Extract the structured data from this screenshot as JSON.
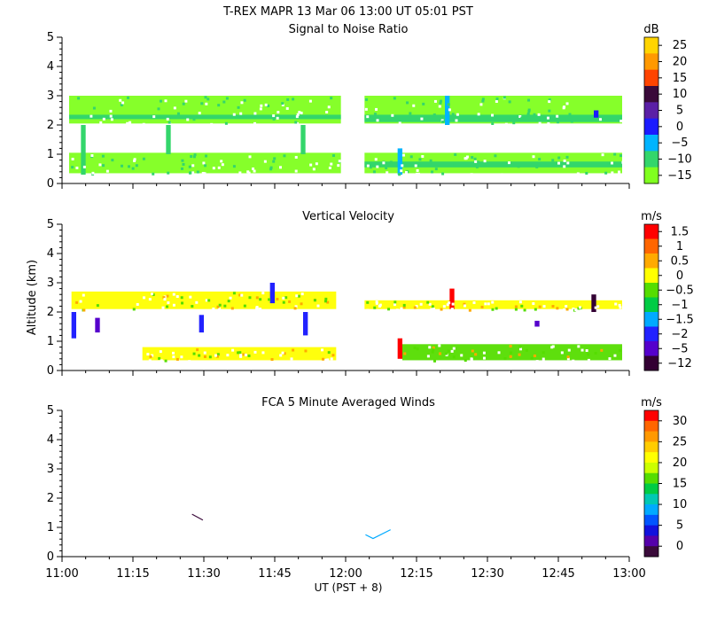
{
  "header": {
    "title": "T-REX   MAPR 13 Mar 06   13:00 UT   05:01   PST"
  },
  "chart_data": [
    {
      "type": "heatmap",
      "title": "Signal to Noise Ratio",
      "ylabel": "",
      "ylim": [
        0,
        5
      ],
      "yticks": [
        "0",
        "1",
        "2",
        "3",
        "4",
        "5"
      ],
      "xlim_minutes": [
        0,
        120
      ],
      "colorbar": {
        "unit": "dB",
        "labels": [
          "25",
          "20",
          "15",
          "10",
          "5",
          "0",
          "−5",
          "−10",
          "−15"
        ],
        "colors": [
          "#ffd400",
          "#ff9900",
          "#ff4400",
          "#3a0a3a",
          "#5b1fa6",
          "#1b1bff",
          "#00b4ff",
          "#33d66b",
          "#80ff1f"
        ]
      },
      "features": [
        {
          "name": "lower-band",
          "x0": 1.5,
          "x1": 59,
          "y0": 0.35,
          "y1": 1.05,
          "color": "#80ff1f"
        },
        {
          "name": "lower-band",
          "x0": 64,
          "x1": 118.5,
          "y0": 0.35,
          "y1": 1.05,
          "color": "#80ff1f"
        },
        {
          "name": "upper-band",
          "x0": 1.5,
          "x1": 59,
          "y0": 2.05,
          "y1": 3.0,
          "color": "#80ff1f"
        },
        {
          "name": "upper-band",
          "x0": 64,
          "x1": 118.5,
          "y0": 2.05,
          "y1": 3.0,
          "color": "#80ff1f"
        },
        {
          "name": "upper-core",
          "x0": 1.5,
          "x1": 59,
          "y0": 2.2,
          "y1": 2.35,
          "color": "#33d66b"
        },
        {
          "name": "upper-core",
          "x0": 64,
          "x1": 118.5,
          "y0": 2.1,
          "y1": 2.35,
          "color": "#33d66b"
        },
        {
          "name": "lower-core",
          "x0": 64,
          "x1": 118.5,
          "y0": 0.55,
          "y1": 0.75,
          "color": "#33d66b"
        },
        {
          "name": "column",
          "x0": 4,
          "x1": 5,
          "y0": 0.3,
          "y1": 2.0,
          "color": "#33d66b"
        },
        {
          "name": "column",
          "x0": 22,
          "x1": 23,
          "y0": 1.0,
          "y1": 2.0,
          "color": "#33d66b"
        },
        {
          "name": "column",
          "x0": 50.5,
          "x1": 51.5,
          "y0": 1.0,
          "y1": 2.0,
          "color": "#33d66b"
        },
        {
          "name": "column",
          "x0": 71,
          "x1": 72,
          "y0": 0.3,
          "y1": 1.2,
          "color": "#00b4ff"
        },
        {
          "name": "column",
          "x0": 81,
          "x1": 82,
          "y0": 2.0,
          "y1": 3.0,
          "color": "#00b4ff"
        },
        {
          "name": "spot",
          "x0": 112.5,
          "x1": 113.5,
          "y0": 2.25,
          "y1": 2.5,
          "color": "#1b1bff"
        }
      ]
    },
    {
      "type": "heatmap",
      "title": "Vertical Velocity",
      "ylabel": "Altitude  (km)",
      "ylim": [
        0,
        5
      ],
      "yticks": [
        "0",
        "1",
        "2",
        "3",
        "4",
        "5"
      ],
      "xlim_minutes": [
        0,
        120
      ],
      "colorbar": {
        "unit": "m/s",
        "labels": [
          "1.5",
          "1",
          "0.5",
          "0",
          "−0.5",
          "−1",
          "−1.5",
          "−2",
          "−5",
          "−12"
        ],
        "colors": [
          "#ff0000",
          "#ff6600",
          "#ffaa00",
          "#ffff00",
          "#55dd00",
          "#00cc44",
          "#00aaff",
          "#2222ff",
          "#5500cc",
          "#330033"
        ]
      },
      "features": [
        {
          "name": "upper-layer",
          "x0": 64,
          "x1": 118.5,
          "y0": 2.1,
          "y1": 2.4,
          "color": "#ffff00"
        },
        {
          "name": "upper-layer",
          "x0": 2,
          "x1": 58,
          "y0": 2.1,
          "y1": 2.7,
          "color": "#ffff00"
        },
        {
          "name": "lower-layer",
          "x0": 17,
          "x1": 58,
          "y0": 0.35,
          "y1": 0.8,
          "color": "#ffff00"
        },
        {
          "name": "lower-layer",
          "x0": 72,
          "x1": 118.5,
          "y0": 0.35,
          "y1": 0.9,
          "color": "#55dd00"
        },
        {
          "name": "streak",
          "x0": 2,
          "x1": 3,
          "y0": 1.1,
          "y1": 2.0,
          "color": "#2222ff"
        },
        {
          "name": "streak",
          "x0": 7,
          "x1": 8,
          "y0": 1.3,
          "y1": 1.8,
          "color": "#5500cc"
        },
        {
          "name": "streak",
          "x0": 29,
          "x1": 30,
          "y0": 1.3,
          "y1": 1.9,
          "color": "#2222ff"
        },
        {
          "name": "streak",
          "x0": 44,
          "x1": 45,
          "y0": 2.3,
          "y1": 3.0,
          "color": "#2222ff"
        },
        {
          "name": "streak",
          "x0": 51,
          "x1": 52,
          "y0": 1.2,
          "y1": 2.0,
          "color": "#2222ff"
        },
        {
          "name": "streak",
          "x0": 71,
          "x1": 72,
          "y0": 0.4,
          "y1": 1.1,
          "color": "#ff0000"
        },
        {
          "name": "streak",
          "x0": 82,
          "x1": 83,
          "y0": 2.1,
          "y1": 2.8,
          "color": "#ff0000"
        },
        {
          "name": "streak",
          "x0": 100,
          "x1": 101,
          "y0": 1.5,
          "y1": 1.7,
          "color": "#5500cc"
        },
        {
          "name": "streak",
          "x0": 112,
          "x1": 113,
          "y0": 2.0,
          "y1": 2.6,
          "color": "#330033"
        }
      ]
    },
    {
      "type": "line",
      "title": "FCA 5 Minute Averaged Winds",
      "ylabel": "",
      "ylim": [
        0,
        5
      ],
      "yticks": [
        "0",
        "1",
        "2",
        "3",
        "4",
        "5"
      ],
      "xlim_minutes": [
        0,
        120
      ],
      "colorbar": {
        "unit": "m/s",
        "labels": [
          "30",
          "25",
          "20",
          "15",
          "10",
          "5",
          "0"
        ],
        "colors": [
          "#ff0000",
          "#ff6600",
          "#ff9900",
          "#ffcc00",
          "#ffff00",
          "#ccff00",
          "#55dd00",
          "#00cc44",
          "#00c8b4",
          "#00aaff",
          "#0055ff",
          "#1111dd",
          "#5500aa",
          "#3a0a3a"
        ]
      },
      "series": [
        {
          "name": "wind-barb-1",
          "color": "#3a0a3a",
          "points": [
            [
              27.5,
              1.45
            ],
            [
              29.8,
              1.25
            ]
          ]
        },
        {
          "name": "wind-barb-2",
          "color": "#00aaff",
          "points": [
            [
              64.2,
              0.75
            ],
            [
              65.8,
              0.62
            ],
            [
              69.5,
              0.92
            ]
          ]
        }
      ]
    }
  ],
  "x_axis": {
    "label": "UT  (PST + 8)",
    "ticks": [
      "11:00",
      "11:15",
      "11:30",
      "11:45",
      "12:00",
      "12:15",
      "12:30",
      "12:45",
      "13:00"
    ]
  }
}
